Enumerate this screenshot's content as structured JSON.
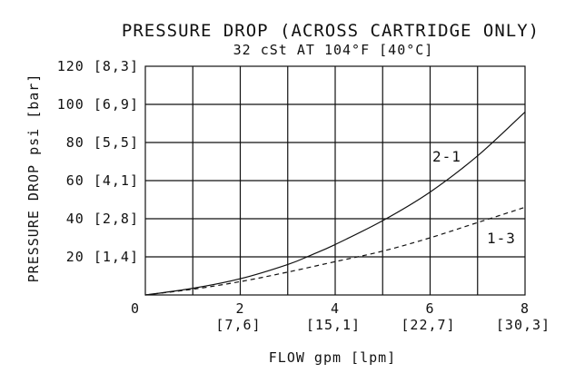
{
  "chart_data": {
    "type": "line",
    "title": "PRESSURE DROP (ACROSS CARTRIDGE ONLY)",
    "subtitle": "32 cSt AT 104°F [40°C]",
    "xlabel": "FLOW gpm [lpm]",
    "ylabel": "PRESSURE DROP psi [bar]",
    "xlim": [
      0,
      8
    ],
    "ylim": [
      0,
      120
    ],
    "grid": true,
    "x_ticks": [
      {
        "value": 0,
        "label": "0",
        "sub": ""
      },
      {
        "value": 2,
        "label": "2",
        "sub": "[7,6]"
      },
      {
        "value": 4,
        "label": "4",
        "sub": "[15,1]"
      },
      {
        "value": 6,
        "label": "6",
        "sub": "[22,7]"
      },
      {
        "value": 8,
        "label": "8",
        "sub": "[30,3]"
      }
    ],
    "y_ticks": [
      {
        "value": 20,
        "label": "20 [1,4]"
      },
      {
        "value": 40,
        "label": "40 [2,8]"
      },
      {
        "value": 60,
        "label": "60 [4,1]"
      },
      {
        "value": 80,
        "label": "80 [5,5]"
      },
      {
        "value": 100,
        "label": "100 [6,9]"
      },
      {
        "value": 120,
        "label": "120 [8,3]"
      }
    ],
    "series": [
      {
        "name": "2-1",
        "style": "solid",
        "x": [
          0,
          1,
          2,
          3,
          3.5,
          4,
          5,
          6,
          7,
          8
        ],
        "y": [
          0,
          3.5,
          8.5,
          16,
          21,
          26.5,
          39,
          54,
          73,
          96
        ]
      },
      {
        "name": "1-3",
        "style": "dashed",
        "x": [
          0,
          1,
          2,
          3,
          4,
          5,
          6,
          7,
          8
        ],
        "y": [
          0,
          3,
          7,
          12,
          17.5,
          23,
          30,
          38,
          46
        ]
      }
    ]
  }
}
